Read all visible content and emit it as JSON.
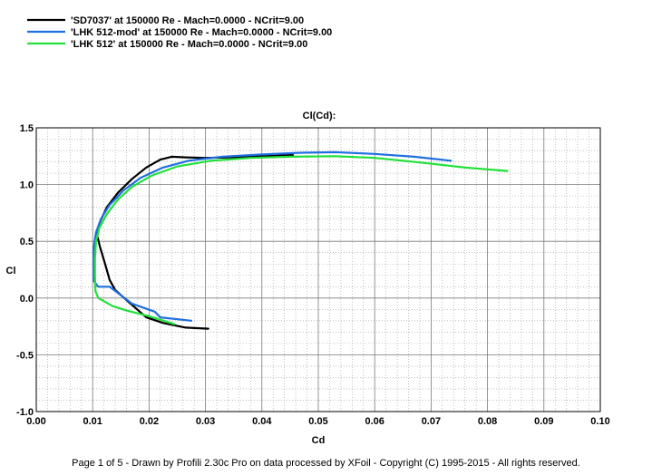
{
  "chart_data": {
    "type": "line",
    "title": "Cl(Cd):",
    "xlabel": "Cd",
    "ylabel": "Cl",
    "xlim": [
      0.0,
      0.1
    ],
    "ylim": [
      -1.0,
      1.5
    ],
    "x_ticks": [
      "0.00",
      "0.01",
      "0.02",
      "0.03",
      "0.04",
      "0.05",
      "0.06",
      "0.07",
      "0.08",
      "0.09",
      "0.10"
    ],
    "y_ticks": [
      "-1.0",
      "-0.5",
      "0.0",
      "0.5",
      "1.0",
      "1.5"
    ],
    "x_tick_values": [
      0.0,
      0.01,
      0.02,
      0.03,
      0.04,
      0.05,
      0.06,
      0.07,
      0.08,
      0.09,
      0.1
    ],
    "y_tick_values": [
      -1.0,
      -0.5,
      0.0,
      0.5,
      1.0,
      1.5
    ],
    "grid": true,
    "legend_position": "top-left",
    "series": [
      {
        "name": "'SD7037' at 150000 Re - Mach=0.0000 - NCrit=9.00",
        "color": "#000000",
        "points": [
          [
            0.0305,
            -0.27
          ],
          [
            0.0265,
            -0.26
          ],
          [
            0.0225,
            -0.22
          ],
          [
            0.0195,
            -0.17
          ],
          [
            0.0165,
            -0.04
          ],
          [
            0.014,
            0.07
          ],
          [
            0.013,
            0.16
          ],
          [
            0.0122,
            0.3
          ],
          [
            0.0113,
            0.45
          ],
          [
            0.0108,
            0.55
          ],
          [
            0.0112,
            0.66
          ],
          [
            0.0125,
            0.8
          ],
          [
            0.0145,
            0.93
          ],
          [
            0.017,
            1.05
          ],
          [
            0.0195,
            1.15
          ],
          [
            0.022,
            1.22
          ],
          [
            0.024,
            1.245
          ],
          [
            0.0265,
            1.24
          ],
          [
            0.03,
            1.235
          ],
          [
            0.035,
            1.24
          ],
          [
            0.04,
            1.25
          ],
          [
            0.0455,
            1.26
          ]
        ]
      },
      {
        "name": "'LHK  512-mod' at 150000 Re - Mach=0.0000 - NCrit=9.00",
        "color": "#1f6fe0",
        "points": [
          [
            0.0275,
            -0.2
          ],
          [
            0.022,
            -0.17
          ],
          [
            0.021,
            -0.12
          ],
          [
            0.017,
            -0.05
          ],
          [
            0.013,
            0.1
          ],
          [
            0.011,
            0.1
          ],
          [
            0.0102,
            0.15
          ],
          [
            0.0102,
            0.3
          ],
          [
            0.0102,
            0.45
          ],
          [
            0.0106,
            0.58
          ],
          [
            0.0115,
            0.7
          ],
          [
            0.013,
            0.82
          ],
          [
            0.0155,
            0.95
          ],
          [
            0.0185,
            1.06
          ],
          [
            0.0225,
            1.15
          ],
          [
            0.027,
            1.21
          ],
          [
            0.033,
            1.245
          ],
          [
            0.04,
            1.265
          ],
          [
            0.047,
            1.28
          ],
          [
            0.053,
            1.285
          ],
          [
            0.06,
            1.27
          ],
          [
            0.067,
            1.245
          ],
          [
            0.0735,
            1.21
          ]
        ]
      },
      {
        "name": "'LHK  512' at 150000 Re - Mach=0.0000 - NCrit=9.00",
        "color": "#22e03a",
        "points": [
          [
            0.0245,
            -0.23
          ],
          [
            0.02,
            -0.16
          ],
          [
            0.016,
            -0.11
          ],
          [
            0.0135,
            -0.07
          ],
          [
            0.011,
            0.0
          ],
          [
            0.0105,
            0.06
          ],
          [
            0.0104,
            0.2
          ],
          [
            0.0104,
            0.35
          ],
          [
            0.0106,
            0.5
          ],
          [
            0.0112,
            0.62
          ],
          [
            0.0125,
            0.74
          ],
          [
            0.0145,
            0.87
          ],
          [
            0.017,
            0.98
          ],
          [
            0.0205,
            1.08
          ],
          [
            0.025,
            1.16
          ],
          [
            0.031,
            1.21
          ],
          [
            0.038,
            1.235
          ],
          [
            0.045,
            1.245
          ],
          [
            0.053,
            1.25
          ],
          [
            0.06,
            1.235
          ],
          [
            0.068,
            1.195
          ],
          [
            0.076,
            1.15
          ],
          [
            0.0835,
            1.12
          ]
        ]
      }
    ]
  },
  "footer": "Page 1 of 5   -   Drawn by Profili 2.30c Pro on data processed by  XFoil - Copyright (C) 1995-2015 - All rights reserved."
}
